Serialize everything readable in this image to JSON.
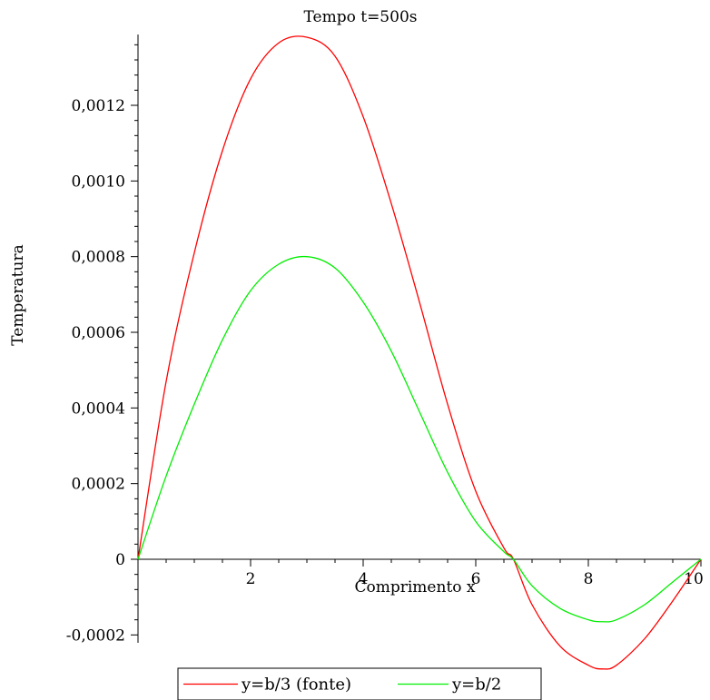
{
  "chart_data": {
    "type": "line",
    "title": "Tempo t=500s",
    "xlabel": "Comprimento x",
    "ylabel": "Temperatura",
    "xlim": [
      0,
      10
    ],
    "ylim": [
      -0.00029,
      0.00138
    ],
    "x_ticks": [
      2,
      4,
      6,
      8,
      10
    ],
    "x_tick_labels": [
      "2",
      "4",
      "6",
      "8",
      "10"
    ],
    "y_ticks": [
      -0.0002,
      0,
      0.0002,
      0.0004,
      0.0006,
      0.0008,
      0.001,
      0.0012
    ],
    "y_tick_labels": [
      "-0,0002",
      "0",
      "0,0002",
      "0,0004",
      "0,0006",
      "0,0008",
      "0,0010",
      "0,0012"
    ],
    "grid": false,
    "legend_position": "bottom",
    "series": [
      {
        "name": "y=b/3 (fonte)",
        "color": "#ff0000",
        "x": [
          0,
          0.5,
          1,
          1.5,
          2,
          2.5,
          3,
          3.5,
          4,
          4.5,
          5,
          5.5,
          6,
          6.5,
          6.67,
          7,
          7.5,
          8,
          8.25,
          8.5,
          9,
          9.5,
          10
        ],
        "y": [
          0,
          0.00047,
          0.00081,
          0.00108,
          0.00127,
          0.001365,
          0.00138,
          0.00133,
          0.00117,
          0.00094,
          0.00068,
          0.00041,
          0.00018,
          3e-05,
          0,
          -0.00012,
          -0.00023,
          -0.00028,
          -0.00029,
          -0.00028,
          -0.00021,
          -0.00011,
          0
        ]
      },
      {
        "name": "y=b/2",
        "color": "#00ee00",
        "x": [
          0,
          0.5,
          1,
          1.5,
          2,
          2.5,
          3,
          3.5,
          4,
          4.5,
          5,
          5.5,
          6,
          6.5,
          6.67,
          7,
          7.5,
          8,
          8.25,
          8.5,
          9,
          9.5,
          10
        ],
        "y": [
          0,
          0.00022,
          0.00041,
          0.00058,
          0.00071,
          0.00078,
          0.0008,
          0.00077,
          0.00068,
          0.00055,
          0.00039,
          0.00023,
          0.0001,
          2e-05,
          0,
          -7e-05,
          -0.00013,
          -0.00016,
          -0.000165,
          -0.00016,
          -0.00012,
          -6e-05,
          0
        ]
      }
    ]
  }
}
